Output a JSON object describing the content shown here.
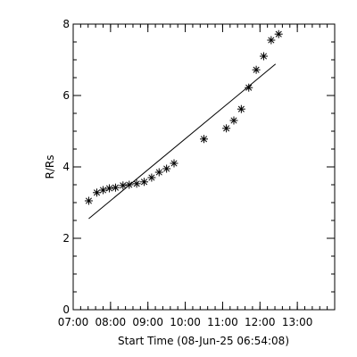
{
  "chart_data": {
    "type": "scatter",
    "xlabel": "Start Time (08-Jun-25 06:54:08)",
    "ylabel": "R/Rs",
    "xunit": "minutes",
    "xlim": [
      420,
      840
    ],
    "ylim": [
      0,
      8
    ],
    "x_ticks": [
      {
        "value": 420,
        "label": "07:00"
      },
      {
        "value": 480,
        "label": "08:00"
      },
      {
        "value": 540,
        "label": "09:00"
      },
      {
        "value": 600,
        "label": "10:00"
      },
      {
        "value": 660,
        "label": "11:00"
      },
      {
        "value": 720,
        "label": "12:00"
      },
      {
        "value": 780,
        "label": "13:00"
      }
    ],
    "x_minor_step": 12,
    "y_ticks": [
      0,
      2,
      4,
      6,
      8
    ],
    "y_minor_step": 0.5,
    "points": [
      {
        "x": 445,
        "y": 3.05
      },
      {
        "x": 458,
        "y": 3.28
      },
      {
        "x": 468,
        "y": 3.35
      },
      {
        "x": 478,
        "y": 3.4
      },
      {
        "x": 488,
        "y": 3.42
      },
      {
        "x": 500,
        "y": 3.48
      },
      {
        "x": 510,
        "y": 3.5
      },
      {
        "x": 522,
        "y": 3.53
      },
      {
        "x": 534,
        "y": 3.58
      },
      {
        "x": 546,
        "y": 3.7
      },
      {
        "x": 558,
        "y": 3.85
      },
      {
        "x": 570,
        "y": 3.95
      },
      {
        "x": 582,
        "y": 4.1
      },
      {
        "x": 630,
        "y": 4.78
      },
      {
        "x": 666,
        "y": 5.08
      },
      {
        "x": 678,
        "y": 5.3
      },
      {
        "x": 690,
        "y": 5.62
      },
      {
        "x": 702,
        "y": 6.22
      },
      {
        "x": 714,
        "y": 6.72
      },
      {
        "x": 726,
        "y": 7.1
      },
      {
        "x": 738,
        "y": 7.55
      },
      {
        "x": 750,
        "y": 7.72
      }
    ],
    "fit_line": [
      {
        "x": 445,
        "y": 2.55
      },
      {
        "x": 745,
        "y": 6.88
      }
    ]
  }
}
